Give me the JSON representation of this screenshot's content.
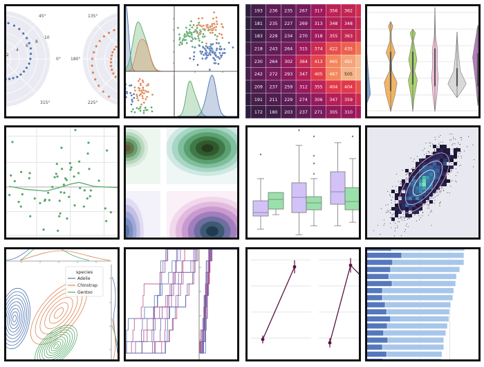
{
  "chart_data": [
    {
      "type": "scatter",
      "subtype": "polar",
      "angle_labels": [
        "45°",
        "0°",
        "315°",
        "135°",
        "180°",
        "225°"
      ],
      "radial_tick_labels": [
        "2",
        "4",
        "6",
        "8",
        "10"
      ],
      "radial_max": 11,
      "series": [
        {
          "color": "#4c72b0",
          "points_theta_deg_r": [
            [
              -90,
              4.5
            ],
            [
              -80,
              4.7
            ],
            [
              -70,
              4.9
            ],
            [
              -60,
              5.1
            ],
            [
              -50,
              5.4
            ],
            [
              -40,
              5.6
            ],
            [
              -30,
              5.8
            ],
            [
              -20,
              6.0
            ],
            [
              -10,
              6.3
            ],
            [
              0,
              6.5
            ],
            [
              10,
              6.7
            ],
            [
              20,
              7.0
            ],
            [
              30,
              7.2
            ],
            [
              40,
              7.4
            ],
            [
              50,
              7.6
            ],
            [
              60,
              7.9
            ],
            [
              70,
              8.1
            ],
            [
              80,
              8.3
            ],
            [
              90,
              8.5
            ],
            [
              100,
              8.8
            ]
          ]
        },
        {
          "color": "#dd8452",
          "points_theta_deg_r": [
            [
              120,
              7.6
            ],
            [
              130,
              7.8
            ],
            [
              140,
              8.0
            ],
            [
              150,
              8.2
            ],
            [
              160,
              8.4
            ],
            [
              170,
              8.6
            ],
            [
              180,
              8.8
            ],
            [
              190,
              9.0
            ],
            [
              200,
              9.2
            ],
            [
              210,
              9.4
            ],
            [
              220,
              9.6
            ],
            [
              230,
              9.8
            ],
            [
              240,
              10.0
            ],
            [
              130,
              4.2
            ],
            [
              140,
              4.3
            ],
            [
              150,
              4.3
            ],
            [
              160,
              4.4
            ],
            [
              170,
              4.4
            ],
            [
              180,
              4.5
            ],
            [
              190,
              4.6
            ],
            [
              200,
              4.8
            ],
            [
              210,
              5.0
            ],
            [
              220,
              5.2
            ],
            [
              230,
              5.4
            ]
          ]
        }
      ]
    },
    {
      "type": "scatter",
      "subtype": "pairplot",
      "colors": [
        "#4c72b0",
        "#dd8452",
        "#55a868"
      ]
    },
    {
      "type": "heatmap",
      "colormap": "rocket",
      "values": [
        [
          193,
          236,
          235,
          267,
          317,
          356,
          362
        ],
        [
          181,
          235,
          227,
          269,
          313,
          348,
          348
        ],
        [
          183,
          229,
          234,
          270,
          318,
          355,
          363
        ],
        [
          218,
          243,
          264,
          315,
          374,
          422,
          435
        ],
        [
          230,
          264,
          302,
          364,
          413,
          465,
          491
        ],
        [
          242,
          272,
          293,
          347,
          405,
          467,
          505
        ],
        [
          209,
          237,
          259,
          312,
          355,
          404,
          404
        ],
        [
          191,
          211,
          229,
          274,
          306,
          347,
          359
        ],
        [
          172,
          180,
          203,
          237,
          271,
          305,
          310
        ]
      ]
    },
    {
      "type": "violin",
      "grid": true,
      "violins": [
        {
          "color": "#7ea3d2",
          "profile": [
            [
              5.37,
              0
            ],
            [
              4.3,
              0.5
            ],
            [
              2.98,
              1.2
            ],
            [
              1.01,
              2.6
            ],
            [
              0.17,
              0
            ]
          ],
          "box": [
            1.3,
            3.5
          ]
        },
        {
          "color": "#f2b463",
          "profile": [
            [
              5.44,
              0
            ],
            [
              5.16,
              1.1
            ],
            [
              4.81,
              0.3
            ],
            [
              4.25,
              0.4
            ],
            [
              3.54,
              2.2
            ],
            [
              2.98,
              0.4
            ],
            [
              2.42,
              0.6
            ],
            [
              1.72,
              3.1
            ],
            [
              1.02,
              2.2
            ],
            [
              -0.04,
              0
            ]
          ],
          "box": [
            1.2,
            3.6
          ]
        },
        {
          "color": "#a9d36a",
          "profile": [
            [
              4.98,
              0
            ],
            [
              4.74,
              1.3
            ],
            [
              4.25,
              0.3
            ],
            [
              3.12,
              2.0
            ],
            [
              2.42,
              0.9
            ],
            [
              1.86,
              2.2
            ],
            [
              0.73,
              0.6
            ],
            [
              -0.04,
              0
            ]
          ],
          "box": [
            1.6,
            3.6
          ]
        },
        {
          "color": "#f6c6de",
          "profile": [
            [
              6.3,
              0
            ],
            [
              4.53,
              0.3
            ],
            [
              3.69,
              1.3
            ],
            [
              2.84,
              1.1
            ],
            [
              2.0,
              1.6
            ],
            [
              0.87,
              0.9
            ],
            [
              -0.04,
              0
            ]
          ],
          "box": [
            1.5,
            3.8
          ]
        },
        {
          "color": "#d9d9d9",
          "profile": [
            [
              4.81,
              0
            ],
            [
              4.1,
              0.3
            ],
            [
              3.26,
              0.9
            ],
            [
              2.42,
              1.6
            ],
            [
              1.65,
              4.4
            ],
            [
              1.31,
              2.8
            ],
            [
              0.8,
              0
            ]
          ],
          "box": [
            1.5,
            2.6
          ]
        },
        {
          "color": "#b27cba",
          "profile": [
            [
              5.23,
              0
            ],
            [
              3.26,
              2.5
            ],
            [
              1.7,
              1.0
            ],
            [
              0.31,
              0
            ]
          ],
          "box": [
            1.5,
            3.5
          ]
        }
      ]
    },
    {
      "type": "scatter",
      "subtype": "residual",
      "color": "#55a868",
      "xlim": [
        0,
        10
      ],
      "ylim": [
        -2.6,
        2.7
      ],
      "points": [
        [
          0.31,
          1.95
        ],
        [
          0.17,
          0.5
        ],
        [
          0.52,
          0.25
        ],
        [
          1.1,
          0.65
        ],
        [
          1.88,
          0.6
        ],
        [
          1.83,
          0.38
        ],
        [
          1.21,
          -0.32
        ],
        [
          0.88,
          -0.65
        ],
        [
          1.08,
          -0.85
        ],
        [
          1.92,
          -1.27
        ],
        [
          2.33,
          -0.5
        ],
        [
          2.81,
          -0.7
        ],
        [
          3.13,
          -1.85
        ],
        [
          3.23,
          -0.6
        ],
        [
          3.27,
          -0.55
        ],
        [
          3.65,
          -0.57
        ],
        [
          3.54,
          -0.25
        ],
        [
          3.92,
          0
        ],
        [
          4.13,
          0.42
        ],
        [
          4.27,
          0.57
        ],
        [
          4.33,
          1.0
        ],
        [
          4.38,
          0.45
        ],
        [
          4.75,
          1.7
        ],
        [
          4.79,
          0.78
        ],
        [
          4.69,
          -0.23
        ],
        [
          4.58,
          -0.6
        ],
        [
          4.63,
          -1.15
        ],
        [
          4.54,
          -1.27
        ],
        [
          4.42,
          -1.9
        ],
        [
          5.0,
          -0.25
        ],
        [
          4.96,
          0.1
        ],
        [
          5.1,
          0.37
        ],
        [
          5.21,
          0.3
        ],
        [
          5.25,
          -1.37
        ],
        [
          5.42,
          -0.43
        ],
        [
          5.52,
          1.03
        ],
        [
          5.63,
          0.85
        ],
        [
          5.56,
          0.75
        ],
        [
          5.88,
          0.45
        ],
        [
          5.94,
          -0.8
        ],
        [
          6.0,
          2.47
        ],
        [
          6.29,
          0.6
        ],
        [
          6.35,
          1.1
        ],
        [
          6.42,
          -0.05
        ],
        [
          6.77,
          -0.85
        ],
        [
          6.83,
          -0.15
        ],
        [
          7.13,
          1.45
        ],
        [
          7.19,
          1.92
        ],
        [
          7.25,
          0.78
        ],
        [
          7.4,
          -0.15
        ],
        [
          7.33,
          -0.4
        ],
        [
          7.08,
          -0.5
        ],
        [
          8.13,
          0.27
        ],
        [
          8.71,
          -0.93
        ],
        [
          8.85,
          1.58
        ],
        [
          9.21,
          -1.1
        ],
        [
          8.79,
          -1.48
        ],
        [
          10.0,
          1.2
        ],
        [
          9.96,
          -0.23
        ],
        [
          0.04,
          -0.35
        ]
      ],
      "smooth_line": [
        [
          0,
          0.03
        ],
        [
          1.46,
          -0.1
        ],
        [
          3.33,
          -0.18
        ],
        [
          4.38,
          -0.05
        ],
        [
          5.63,
          0.13
        ],
        [
          6.35,
          0.2
        ],
        [
          7.71,
          0.02
        ],
        [
          10,
          -0.03
        ]
      ],
      "reference_line_y": 0,
      "x_grid": [
        2.5,
        5.55,
        8.6
      ],
      "y_grid": [
        2.2,
        1.07,
        0,
        -1.07,
        -2.1
      ]
    },
    {
      "type": "heatmap",
      "subtype": "kde-facets",
      "colors": [
        "#2f5b2c",
        "#2e4a2a",
        "#3a5a8c",
        "#1f3b4d"
      ]
    },
    {
      "type": "box",
      "ylim": [
        0,
        16.5
      ],
      "colors": [
        "#d2c2f8",
        "#9ae0ab"
      ],
      "groups": [
        [
          {
            "low": 1.5,
            "q1": 3.4,
            "median": 3.9,
            "q3": 5.6,
            "high": 8.8,
            "outliers": [
              12.3
            ]
          },
          {
            "low": 3.6,
            "q1": 4.4,
            "median": 5.8,
            "q3": 6.8,
            "high": 6.8,
            "outliers": []
          }
        ],
        [
          {
            "low": 0.7,
            "q1": 3.9,
            "median": 6.1,
            "q3": 8.2,
            "high": 13.6,
            "outliers": [
              15.8
            ]
          },
          {
            "low": 2.0,
            "q1": 4.3,
            "median": 5.3,
            "q3": 6.2,
            "high": 8.8,
            "outliers": [
              14.9,
              12.1,
              11.0,
              9.5
            ]
          }
        ],
        [
          {
            "low": 2.0,
            "q1": 5.1,
            "median": 6.9,
            "q3": 9.8,
            "high": 14.0,
            "outliers": []
          },
          {
            "low": 2.5,
            "q1": 4.3,
            "median": 5.5,
            "q3": 7.5,
            "high": 11.7,
            "outliers": [
              14.9
            ]
          }
        ]
      ]
    },
    {
      "type": "heatmap",
      "subtype": "hexbin-with-scatter-and-contours",
      "colormap": "mako",
      "background": "#e8e8f0"
    },
    {
      "type": "line",
      "subtype": "kde-contours-with-marginals",
      "legend": {
        "title": "species",
        "entries": [
          "Adelie",
          "Chinstrap",
          "Gentoo"
        ],
        "placement": "upper-right"
      },
      "colors": [
        "#4c72b0",
        "#dd8452",
        "#55a868"
      ]
    },
    {
      "type": "line",
      "subtype": "ecdf",
      "colors": [
        "#4c72b0",
        "#6a5fb0",
        "#8c4fa0",
        "#b04a8a",
        "#c23a6b"
      ]
    },
    {
      "type": "line",
      "subtype": "pointplot",
      "color": "#5a1040",
      "grid_y": [
        1,
        2,
        3,
        4
      ],
      "panels": [
        {
          "points": [
            {
              "y": 0.95,
              "err": 0.15
            },
            {
              "y": 3.73,
              "err": 0.25
            }
          ]
        },
        {
          "points": [
            {
              "y": 0.82,
              "err": 0.18
            },
            {
              "y": 3.79,
              "err": 0.28
            },
            {
              "y": 3.36,
              "err": 0.1
            }
          ]
        }
      ]
    },
    {
      "type": "bar",
      "orientation": "horizontal",
      "x_grid": [
        10,
        20,
        30
      ],
      "series": [
        {
          "color": "#a7c6ea",
          "values": [
            34.9,
            34.7,
            34.7,
            33.3,
            32.2,
            31.95,
            31.3,
            31.0,
            30.3,
            29.9,
            29.7,
            29.2,
            28.7,
            28.0,
            28.0,
            27.4,
            27.1
          ]
        },
        {
          "color": "#5578bd",
          "values": [
            10.6,
            14.0,
            11.0,
            10.3,
            9.7,
            10.8,
            7.6,
            7.6,
            8.5,
            9.0,
            10.3,
            9.2,
            8.0,
            9.4,
            7.6,
            9.0,
            7.8
          ]
        }
      ]
    }
  ]
}
